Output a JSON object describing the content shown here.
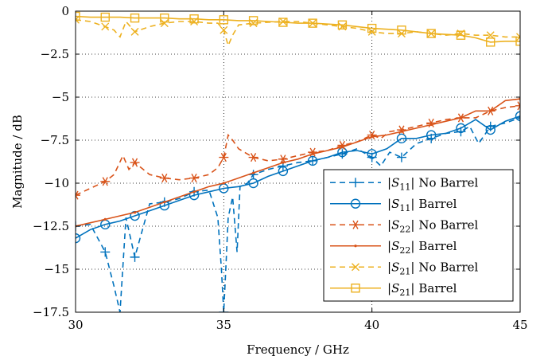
{
  "chart_data": {
    "type": "line",
    "title": "",
    "xlabel": "Frequency / GHz",
    "ylabel": "Magnitude / dB",
    "xlim": [
      30,
      45
    ],
    "ylim": [
      -17.5,
      0
    ],
    "xticks": [
      30,
      35,
      40,
      45
    ],
    "yticks": [
      0,
      -2.5,
      -5,
      -7.5,
      -10,
      -12.5,
      -15,
      -17.5
    ],
    "ytick_labels": [
      "0",
      "−2.5",
      "−5",
      "−7.5",
      "−10",
      "−12.5",
      "−15",
      "−17.5"
    ],
    "grid": "dotted",
    "legend_position": "bottom-right",
    "series": [
      {
        "name": "|S11| No Barrel",
        "legend": {
          "sym": "S",
          "sub": "11",
          "rest": "No Barrel"
        },
        "color": "#0072BD",
        "dash": "dashed",
        "marker": "plus",
        "markers_at": [
          30,
          31,
          32,
          33,
          34,
          35,
          36,
          37,
          38,
          39,
          40,
          41,
          42,
          43,
          44,
          45
        ],
        "x": [
          30,
          30.5,
          31,
          31.3,
          31.5,
          31.7,
          32,
          32.5,
          33,
          33.5,
          34,
          34.5,
          34.8,
          34.92,
          35,
          35.07,
          35.15,
          35.3,
          35.45,
          35.55,
          35.8,
          36,
          36.5,
          37,
          37.5,
          38,
          38.5,
          39,
          39.5,
          40,
          40.3,
          40.6,
          41,
          41.5,
          42,
          42.5,
          43,
          43.3,
          43.6,
          44,
          44.5,
          45
        ],
        "y": [
          -12.5,
          -12.4,
          -14,
          -16,
          -17.5,
          -12,
          -14.3,
          -11.2,
          -11.1,
          -10.9,
          -10.5,
          -10.4,
          -12,
          -15,
          -17.5,
          -15,
          -12,
          -10.8,
          -14,
          -10.2,
          -10,
          -9.5,
          -9.2,
          -9,
          -8.8,
          -8.7,
          -8.5,
          -8.3,
          -8,
          -8.5,
          -9,
          -8.2,
          -8.5,
          -7.7,
          -7.4,
          -7.1,
          -7,
          -6.7,
          -7.7,
          -6.7,
          -6.5,
          -6.2
        ]
      },
      {
        "name": "|S11| Barrel",
        "legend": {
          "sym": "S",
          "sub": "11",
          "rest": "Barrel"
        },
        "color": "#0072BD",
        "dash": "solid",
        "marker": "circle",
        "markers_at": [
          30,
          31,
          32,
          33,
          34,
          35,
          36,
          37,
          38,
          39,
          40,
          41,
          42,
          43,
          44,
          45
        ],
        "x": [
          30,
          30.5,
          31,
          31.5,
          32,
          32.5,
          33,
          33.5,
          34,
          34.5,
          35,
          35.5,
          36,
          36.5,
          37,
          37.5,
          38,
          38.5,
          39,
          39.5,
          40,
          40.5,
          41,
          41.5,
          42,
          42.5,
          43,
          43.5,
          44,
          44.5,
          45
        ],
        "y": [
          -13.2,
          -12.7,
          -12.4,
          -12.2,
          -11.9,
          -11.6,
          -11.3,
          -11,
          -10.7,
          -10.5,
          -10.3,
          -10.2,
          -10,
          -9.6,
          -9.3,
          -9,
          -8.7,
          -8.5,
          -8.2,
          -8.1,
          -8.3,
          -8,
          -7.4,
          -7.4,
          -7.2,
          -7.1,
          -6.8,
          -6.3,
          -6.9,
          -6.4,
          -6.1
        ]
      },
      {
        "name": "|S22| No Barrel",
        "legend": {
          "sym": "S",
          "sub": "22",
          "rest": "No Barrel"
        },
        "color": "#D95319",
        "dash": "dashed",
        "marker": "asterisk",
        "markers_at": [
          30,
          31,
          32,
          33,
          34,
          35,
          36,
          37,
          38,
          39,
          40,
          41,
          42,
          43,
          44,
          45
        ],
        "x": [
          30,
          30.5,
          31,
          31.3,
          31.6,
          31.8,
          32,
          32.5,
          33,
          33.5,
          34,
          34.5,
          34.8,
          35,
          35.15,
          35.3,
          35.5,
          35.8,
          36,
          36.5,
          37,
          37.5,
          38,
          38.5,
          39,
          39.5,
          40,
          40.3,
          40.6,
          41,
          41.5,
          42,
          42.5,
          43,
          43.5,
          44,
          44.5,
          45
        ],
        "y": [
          -10.7,
          -10.3,
          -9.9,
          -9.5,
          -8.4,
          -9.2,
          -8.8,
          -9.5,
          -9.7,
          -9.8,
          -9.7,
          -9.5,
          -9.1,
          -8.5,
          -7.2,
          -7.5,
          -8,
          -8.3,
          -8.5,
          -8.7,
          -8.6,
          -8.4,
          -8.2,
          -8.1,
          -7.8,
          -7.6,
          -7.2,
          -7.4,
          -7,
          -6.9,
          -6.7,
          -6.5,
          -6.3,
          -6.2,
          -6.2,
          -5.8,
          -5.6,
          -5.5
        ]
      },
      {
        "name": "|S22| Barrel",
        "legend": {
          "sym": "S",
          "sub": "22",
          "rest": "Barrel"
        },
        "color": "#D95319",
        "dash": "solid",
        "marker": "dot",
        "markers_at": [
          30,
          31,
          32,
          33,
          34,
          35,
          36,
          37,
          38,
          39,
          40,
          41,
          42,
          43,
          44,
          45
        ],
        "x": [
          30,
          30.5,
          31,
          31.5,
          32,
          32.5,
          33,
          33.5,
          34,
          34.5,
          35,
          35.5,
          36,
          36.5,
          37,
          37.5,
          38,
          38.5,
          39,
          39.5,
          40,
          40.5,
          41,
          41.5,
          42,
          42.5,
          43,
          43.5,
          44,
          44.5,
          45
        ],
        "y": [
          -12.5,
          -12.3,
          -12.1,
          -11.9,
          -11.7,
          -11.4,
          -11.1,
          -10.8,
          -10.5,
          -10.2,
          -10,
          -9.7,
          -9.4,
          -9.1,
          -8.8,
          -8.6,
          -8.3,
          -8.1,
          -7.9,
          -7.6,
          -7.3,
          -7.2,
          -7,
          -6.8,
          -6.6,
          -6.4,
          -6.2,
          -5.8,
          -5.8,
          -5.2,
          -5.1
        ]
      },
      {
        "name": "|S21| No Barrel",
        "legend": {
          "sym": "S",
          "sub": "21",
          "rest": "No Barrel"
        },
        "color": "#EDB120",
        "dash": "dashed",
        "marker": "cross",
        "markers_at": [
          30,
          31,
          32,
          33,
          34,
          35,
          36,
          37,
          38,
          39,
          40,
          41,
          42,
          43,
          44,
          45
        ],
        "x": [
          30,
          30.5,
          31,
          31.3,
          31.5,
          31.7,
          32,
          32.5,
          33,
          33.5,
          34,
          34.5,
          34.8,
          35,
          35.15,
          35.3,
          35.5,
          36,
          36.5,
          37,
          37.5,
          38,
          38.5,
          39,
          39.5,
          40,
          40.5,
          41,
          41.5,
          42,
          42.5,
          43,
          43.5,
          44,
          44.5,
          45
        ],
        "y": [
          -0.5,
          -0.6,
          -0.9,
          -1.1,
          -1.5,
          -0.6,
          -1.2,
          -0.9,
          -0.7,
          -0.6,
          -0.6,
          -0.7,
          -0.7,
          -1.1,
          -2,
          -1.4,
          -0.8,
          -0.7,
          -0.65,
          -0.6,
          -0.6,
          -0.7,
          -0.8,
          -0.9,
          -1,
          -1.2,
          -1.3,
          -1.3,
          -1.2,
          -1.3,
          -1.4,
          -1.3,
          -1.4,
          -1.4,
          -1.5,
          -1.5
        ]
      },
      {
        "name": "|S21| Barrel",
        "legend": {
          "sym": "S",
          "sub": "21",
          "rest": "Barrel"
        },
        "color": "#EDB120",
        "dash": "solid",
        "marker": "square",
        "markers_at": [
          30,
          31,
          32,
          33,
          34,
          35,
          36,
          37,
          38,
          39,
          40,
          41,
          42,
          43,
          44,
          45
        ],
        "x": [
          30,
          30.5,
          31,
          31.5,
          32,
          32.5,
          33,
          33.5,
          34,
          34.5,
          35,
          35.5,
          36,
          36.5,
          37,
          37.5,
          38,
          38.5,
          39,
          39.5,
          40,
          40.5,
          41,
          41.5,
          42,
          42.5,
          43,
          43.5,
          44,
          44.5,
          45
        ],
        "y": [
          -0.3,
          -0.35,
          -0.35,
          -0.35,
          -0.4,
          -0.4,
          -0.4,
          -0.45,
          -0.45,
          -0.5,
          -0.5,
          -0.55,
          -0.55,
          -0.6,
          -0.65,
          -0.7,
          -0.7,
          -0.75,
          -0.8,
          -0.9,
          -1,
          -1.05,
          -1.1,
          -1.2,
          -1.3,
          -1.35,
          -1.4,
          -1.55,
          -1.8,
          -1.75,
          -1.75
        ]
      }
    ]
  }
}
